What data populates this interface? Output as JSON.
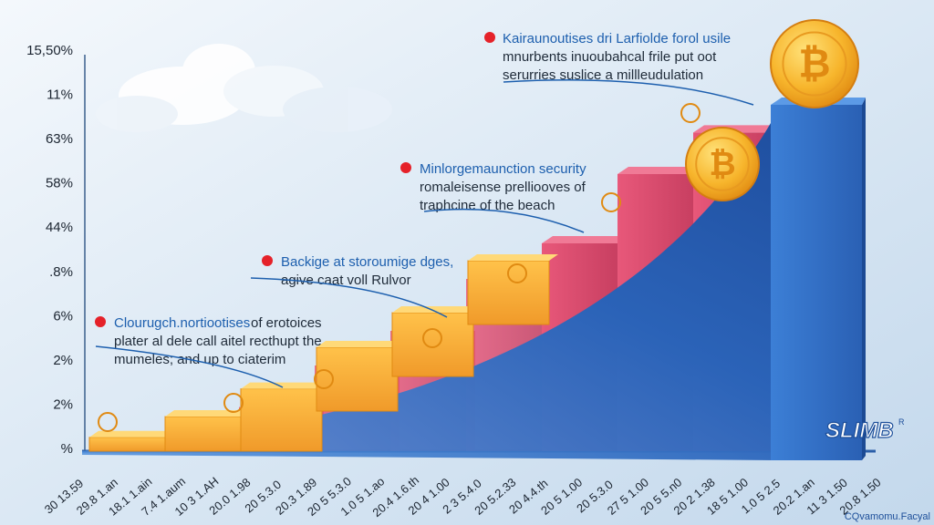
{
  "chart_data": {
    "type": "bar",
    "title": "",
    "xlabel": "",
    "ylabel": "",
    "y_tick_labels": [
      "15,50%",
      "11%",
      "63%",
      "58%",
      "44%",
      ".8%",
      "6%",
      "2%",
      "2%",
      "%"
    ],
    "x_tick_labels": [
      "30 13.59",
      "29.8 1.an",
      "18.1 1.ain",
      "7.4 1.aum",
      "10 3 1.AH",
      "20.0 1.98",
      "20 5.3.0",
      "20.3 1.89",
      "20 5 5.3.0",
      "1.0 5 1.ao",
      "20.4 1.6.th",
      "20 4 1.00",
      "2 3 5.4.0",
      "20 5.2.33",
      "20 4.4.th",
      "20 5 1.00",
      "20 5.3.0",
      "27 5 1.00",
      "20 5 5.n0",
      "20 2 1.38",
      "18 5 1.00",
      "1.0 5 2.5",
      "20.2 1.an",
      "11 3 1.50",
      "20.8 1.50"
    ],
    "stair_levels": [
      0.04,
      0.1,
      0.18,
      0.3,
      0.4,
      0.55,
      0.6,
      0.8,
      0.92
    ],
    "tallest_bar_level": 1.0,
    "grid": false,
    "legend": "none",
    "colors": {
      "gold": "#f2a83a",
      "gold_light": "#ffd25a",
      "pink": "#e0506e",
      "blue": "#2b63b8",
      "annotation_dot": "#e52129",
      "annotation_title": "#1d5fae",
      "background": "#dbe9f4"
    },
    "annotations": [
      {
        "title": "Kairaunoutises dri Larfiolde forol usile",
        "lines": [
          "mnurbents inuoubahcal frile put oot",
          "serurries suslice a millleudulation"
        ]
      },
      {
        "title": "Minlorgemaunction security",
        "lines": [
          "romaleisense prelliooves of",
          "traphcine of the beach"
        ]
      },
      {
        "title": "Backige at storoumige dges,",
        "lines": [
          "agive caat voll Rulvor"
        ]
      },
      {
        "title": "Clourugch.nortiootises",
        "title_rest": "of erotoices",
        "lines": [
          "plater al dele call aitel recthupt the",
          "mumeles; and up to ciaterim"
        ]
      }
    ],
    "logo": {
      "text": "SLIMB",
      "sup": "R"
    },
    "caption": "CQvamomu.Facyal"
  }
}
